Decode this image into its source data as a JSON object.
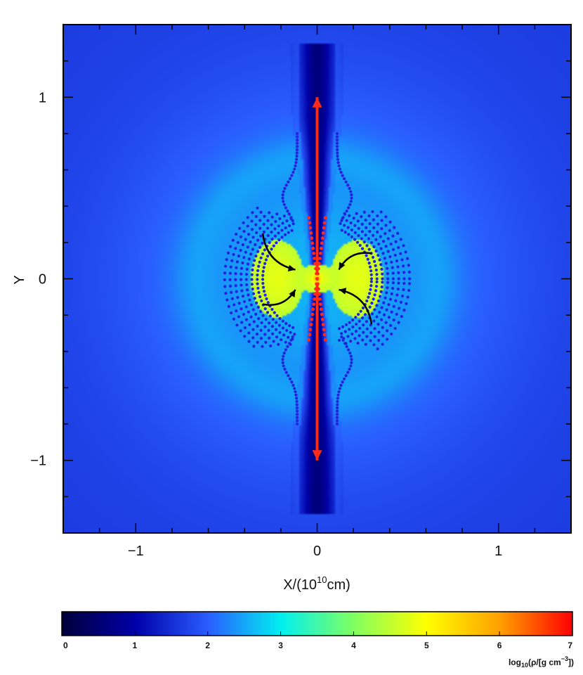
{
  "chart_data": {
    "type": "heatmap",
    "title": "",
    "xlim": [
      -1.4,
      1.4
    ],
    "ylim": [
      -1.4,
      1.4
    ],
    "x_ticks": [
      -1,
      0,
      1
    ],
    "x_tick_labels": [
      "−1",
      "0",
      "1"
    ],
    "y_ticks": [
      -1,
      0,
      1
    ],
    "y_tick_labels": [
      "−1",
      "0",
      "1"
    ],
    "x_minor_step": 0.2,
    "y_minor_step": 0.2,
    "xlabel": {
      "prefix": "X/(10",
      "sup": "10",
      "suffix": "cm)"
    },
    "ylabel": "Y",
    "colorbar": {
      "range": [
        0,
        7
      ],
      "ticks": [
        0,
        1,
        2,
        3,
        4,
        5,
        6,
        7
      ],
      "tick_labels": [
        "0",
        "1",
        "2",
        "3",
        "4",
        "5",
        "6",
        "7"
      ],
      "label": {
        "prefix": "log",
        "sub": "10",
        "mid": "(ρ/[g cm",
        "sup": "−3",
        "suffix": "])"
      },
      "colors": [
        "#00003a",
        "#0000a8",
        "#2a5cff",
        "#00f0f0",
        "#80ff60",
        "#ffff00",
        "#ffa000",
        "#ff0000"
      ]
    },
    "field": {
      "background_log_rho_center": 2.6,
      "background_log_rho_edge": 1.65,
      "torus_log_rho": 4.8,
      "core_log_rho": 5.8,
      "jet_log_rho": 0.6,
      "jet_length": 1.3
    },
    "jet_arrows": {
      "color": "#ff2a1a",
      "up": {
        "x": [
          0,
          0
        ],
        "y": [
          0.02,
          1.0
        ]
      },
      "down": {
        "x": [
          0,
          0
        ],
        "y": [
          -0.02,
          -1.0
        ]
      }
    },
    "inflow_arrows": {
      "color": "#000000",
      "arrows": [
        {
          "from": [
            -0.3,
            0.25
          ],
          "to": [
            -0.12,
            0.05
          ]
        },
        {
          "from": [
            -0.3,
            -0.14
          ],
          "to": [
            -0.12,
            -0.06
          ]
        },
        {
          "from": [
            0.3,
            0.14
          ],
          "to": [
            0.12,
            0.05
          ]
        },
        {
          "from": [
            0.3,
            -0.25
          ],
          "to": [
            0.12,
            -0.06
          ]
        }
      ]
    },
    "tracer_particles": {
      "color": "#2222dd",
      "shell_radii": [
        0.3,
        0.33,
        0.36,
        0.39,
        0.42,
        0.45,
        0.48,
        0.51
      ],
      "polar_stream_top_y": 0.8
    },
    "red_particles": {
      "color": "#ff2a1a"
    }
  }
}
